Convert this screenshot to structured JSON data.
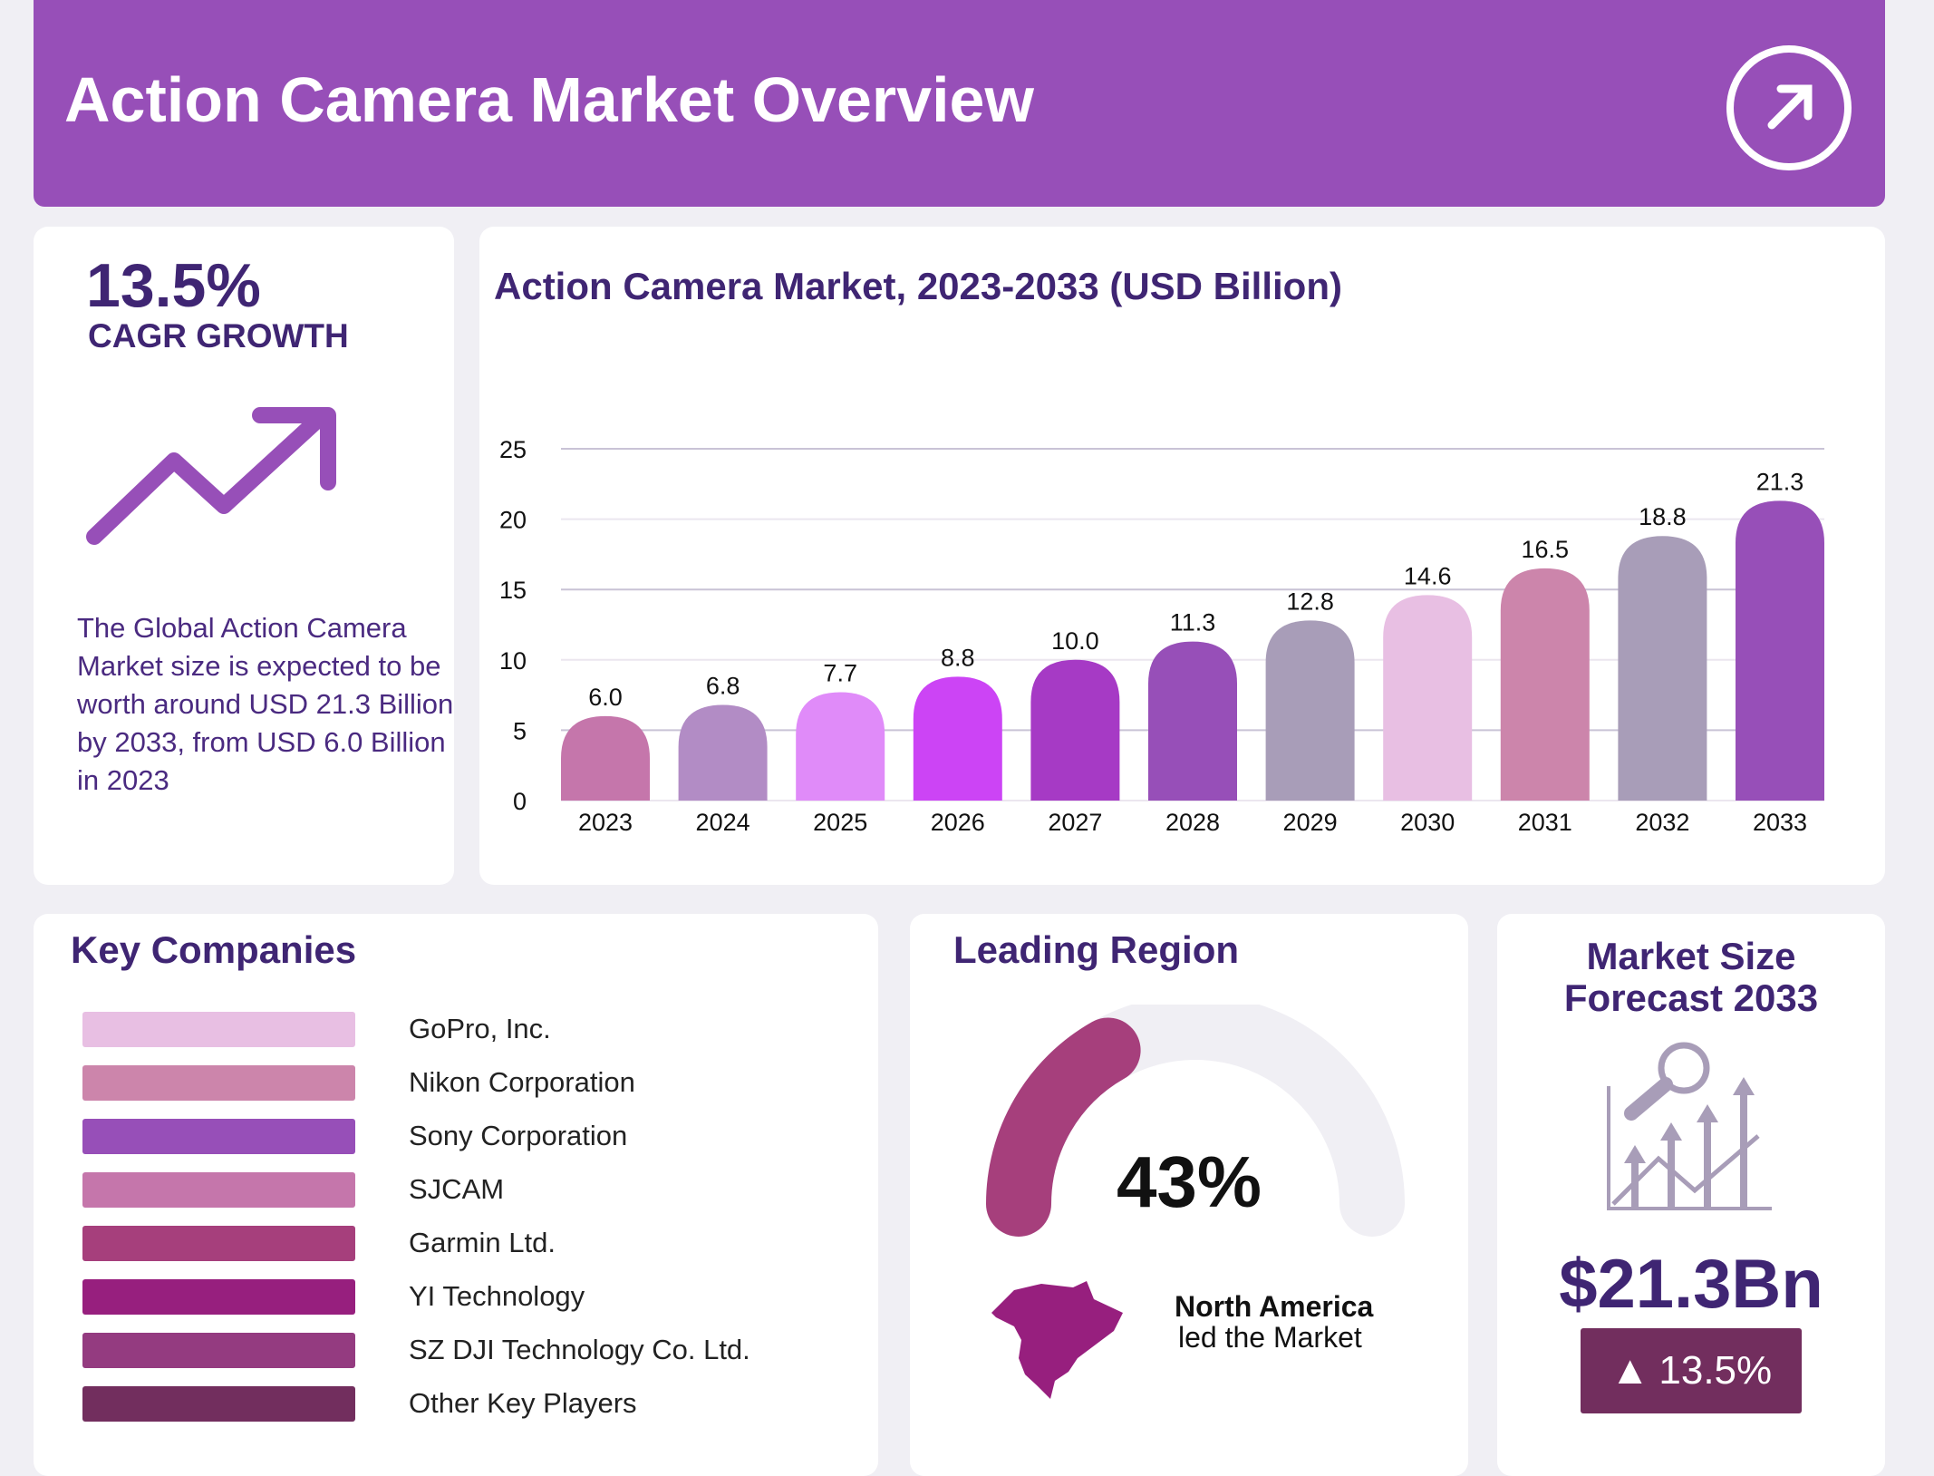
{
  "header": {
    "title": "Action Camera Market Overview",
    "icon": "arrow-up-right-circle-icon"
  },
  "cagr": {
    "value": "13.5%",
    "label": "CAGR GROWTH",
    "icon": "trending-up-arrow-icon",
    "description": "The Global Action Camera Market size is expected to be worth around USD 21.3 Billion by 2033, from USD 6.0 Billion in 2023"
  },
  "chart_data": {
    "type": "bar",
    "title": "Action Camera Market, 2023-2033 (USD Billion)",
    "categories": [
      "2023",
      "2024",
      "2025",
      "2026",
      "2027",
      "2028",
      "2029",
      "2030",
      "2031",
      "2032",
      "2033"
    ],
    "values": [
      6.0,
      6.8,
      7.7,
      8.8,
      10.0,
      11.3,
      12.8,
      14.6,
      16.5,
      18.8,
      21.3
    ],
    "value_labels": [
      "6.0",
      "6.8",
      "7.7",
      "8.8",
      "10.0",
      "11.3",
      "12.8",
      "14.6",
      "16.5",
      "18.8",
      "21.3"
    ],
    "colors": [
      "#c576ab",
      "#b28cc5",
      "#e08bf9",
      "#cc44f5",
      "#a63ac5",
      "#974fb8",
      "#a89db8",
      "#e8bfe3",
      "#cc85ab",
      "#a89db8",
      "#974fb8"
    ],
    "ylim": [
      0,
      25
    ],
    "yticks": [
      "0",
      "5",
      "10",
      "15",
      "20",
      "25"
    ],
    "grid": true,
    "xlabel": "",
    "ylabel": ""
  },
  "companies": {
    "title": "Key Companies",
    "items": [
      {
        "name": "GoPro, Inc.",
        "color": "#e8bfe3"
      },
      {
        "name": "Nikon Corporation",
        "color": "#cc85ab"
      },
      {
        "name": "Sony Corporation",
        "color": "#974fb8"
      },
      {
        "name": "SJCAM",
        "color": "#c576ab"
      },
      {
        "name": "Garmin Ltd.",
        "color": "#a63f7c"
      },
      {
        "name": "YI Technology",
        "color": "#971f7e"
      },
      {
        "name": "SZ DJI Technology Co. Ltd.",
        "color": "#943b80"
      },
      {
        "name": "Other Key Players",
        "color": "#722e5e"
      }
    ]
  },
  "region": {
    "title": "Leading Region",
    "percent": "43%",
    "share": 43,
    "name": "North America",
    "sub": "led the Market",
    "gauge_color": "#a63f7c",
    "map_color": "#971f7e"
  },
  "forecast": {
    "title_line1": "Market Size",
    "title_line2": "Forecast 2033",
    "value": "$21.3Bn",
    "growth": "13.5%",
    "icon": "magnifier-growth-chart-icon",
    "badge_color": "#722e5e"
  }
}
